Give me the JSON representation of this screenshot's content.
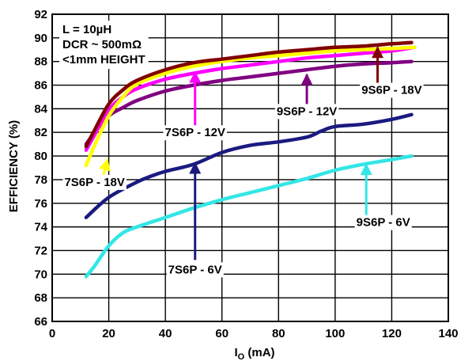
{
  "chart_data": {
    "type": "line",
    "xlabel_main": "I",
    "xlabel_sub": "O",
    "xlabel_unit": " (mA)",
    "ylabel": "EFFICIENCY (%)",
    "xlim": [
      0,
      140
    ],
    "ylim": [
      66,
      92
    ],
    "xticks": [
      0,
      20,
      40,
      60,
      80,
      100,
      120,
      140
    ],
    "yticks": [
      66,
      68,
      70,
      72,
      74,
      76,
      78,
      80,
      82,
      84,
      86,
      88,
      90,
      92
    ],
    "grid": true,
    "annotations": [
      "L = 10µH",
      "DCR ~ 500mΩ",
      "<1mm HEIGHT"
    ],
    "series": [
      {
        "name": "9S6P - 6V",
        "color": "#33e6e6",
        "x": [
          12,
          15,
          20,
          25,
          30,
          40,
          50,
          60,
          70,
          80,
          90,
          100,
          110,
          120,
          127
        ],
        "y": [
          69.8,
          70.7,
          72.4,
          73.5,
          74.0,
          74.8,
          75.6,
          76.3,
          76.9,
          77.5,
          78.1,
          78.8,
          79.3,
          79.7,
          80.0
        ]
      },
      {
        "name": "7S6P - 6V",
        "color": "#1a1a80",
        "x": [
          12,
          20,
          30,
          35,
          40,
          50,
          60,
          70,
          80,
          90,
          95,
          100,
          110,
          120,
          127
        ],
        "y": [
          74.8,
          76.5,
          77.8,
          78.3,
          78.7,
          79.3,
          80.3,
          80.9,
          81.2,
          81.6,
          82.1,
          82.5,
          82.7,
          83.1,
          83.5
        ]
      },
      {
        "name": "9S6P - 12V",
        "color": "#800080",
        "x": [
          12,
          15,
          20,
          25,
          30,
          40,
          50,
          60,
          70,
          80,
          90,
          100,
          110,
          120,
          127
        ],
        "y": [
          81.0,
          82.0,
          83.4,
          84.1,
          84.7,
          85.5,
          86.0,
          86.4,
          86.7,
          87.0,
          87.3,
          87.6,
          87.8,
          87.9,
          88.0
        ]
      },
      {
        "name": "7S6P - 12V",
        "color": "#ff00ff",
        "x": [
          12,
          15,
          20,
          25,
          30,
          40,
          50,
          60,
          70,
          80,
          90,
          100,
          110,
          120,
          128
        ],
        "y": [
          80.5,
          81.8,
          83.9,
          85.0,
          85.7,
          86.5,
          87.0,
          87.4,
          87.7,
          88.0,
          88.3,
          88.5,
          88.7,
          88.9,
          89.2
        ]
      },
      {
        "name": "7S6P - 18V",
        "color": "#ffff00",
        "x": [
          12,
          15,
          20,
          25,
          30,
          40,
          50,
          60,
          70,
          80,
          90,
          100,
          110,
          120,
          128
        ],
        "y": [
          79.2,
          80.9,
          83.4,
          85.0,
          86.1,
          87.0,
          87.6,
          88.0,
          88.3,
          88.5,
          88.7,
          88.9,
          89.0,
          89.1,
          89.2
        ]
      },
      {
        "name": "9S6P - 18V",
        "color": "#800000",
        "x": [
          12,
          15,
          20,
          25,
          30,
          40,
          50,
          60,
          70,
          80,
          90,
          100,
          110,
          120,
          127
        ],
        "y": [
          80.8,
          82.2,
          84.4,
          85.6,
          86.4,
          87.3,
          87.9,
          88.2,
          88.5,
          88.8,
          89.0,
          89.2,
          89.3,
          89.5,
          89.6
        ]
      }
    ],
    "callouts": [
      {
        "label": "7S6P - 18V",
        "color": "#ffff00",
        "tip": [
          19.5,
          79.7
        ],
        "from": [
          17.5,
          77.8
        ],
        "text_at": [
          15,
          77.8
        ]
      },
      {
        "label": "7S6P - 12V",
        "color": "#ff00ff",
        "tip": [
          50.5,
          87.1
        ],
        "from": [
          50.5,
          82.5
        ],
        "text_at": [
          50.5,
          82.0
        ]
      },
      {
        "label": "9S6P - 12V",
        "color": "#800080",
        "tip": [
          90,
          86.9
        ],
        "from": [
          90,
          84.0
        ],
        "text_at": [
          90,
          83.8
        ]
      },
      {
        "label": "9S6P - 18V",
        "color": "#800000",
        "tip": [
          115,
          89.2
        ],
        "from": [
          115,
          86.1
        ],
        "text_at": [
          120,
          85.6
        ]
      },
      {
        "label": "7S6P - 6V",
        "color": "#1a1a80",
        "tip": [
          50.5,
          79.4
        ],
        "from": [
          50.5,
          71.2
        ],
        "text_at": [
          50.5,
          70.4
        ]
      },
      {
        "label": "9S6P - 6V",
        "color": "#33e6e6",
        "tip": [
          111,
          79.3
        ],
        "from": [
          111,
          74.5
        ],
        "text_at": [
          117,
          74.4
        ]
      }
    ]
  }
}
